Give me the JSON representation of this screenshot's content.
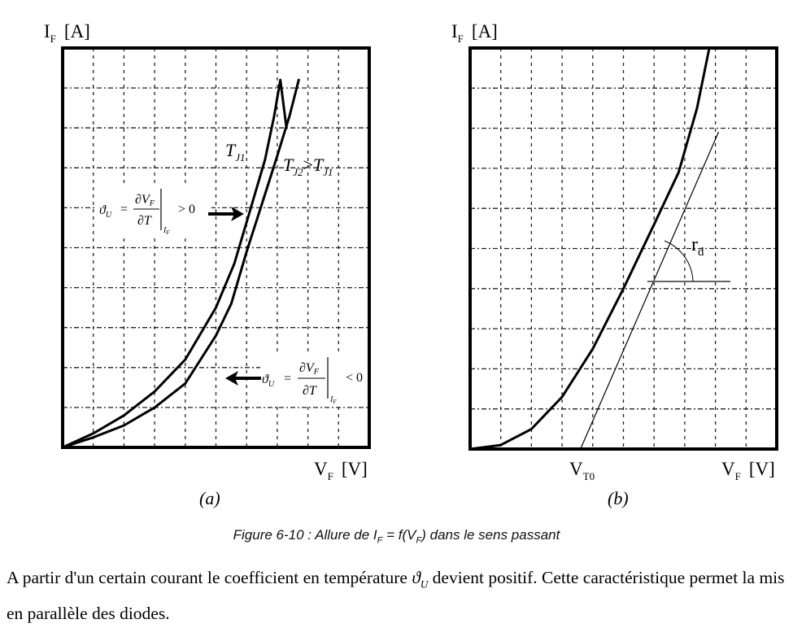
{
  "chart_data": [
    {
      "type": "line",
      "panel_label": "(a)",
      "title": "",
      "ylabel": {
        "main": "I",
        "sub": "F",
        "unit": "[A]"
      },
      "xlabel": {
        "main": "V",
        "sub": "F",
        "unit": "[V]"
      },
      "xlim": [
        0,
        10
      ],
      "ylim": [
        0,
        10
      ],
      "grid": true,
      "series": [
        {
          "name": "TJ1",
          "label_main": "T",
          "label_sub": "J1",
          "x": [
            0,
            1,
            2,
            3,
            4,
            5,
            5.6,
            6.1,
            6.6,
            6.9,
            7.1,
            7.3
          ],
          "y": [
            0,
            0.35,
            0.8,
            1.4,
            2.2,
            3.5,
            4.6,
            5.9,
            7.2,
            8.3,
            9.2,
            8.0
          ]
        },
        {
          "name": "TJ2>TJ1",
          "label_main": "T",
          "label_sub": "J2",
          "label_rel": ">",
          "label_main2": "T",
          "label_sub2": "J1",
          "x": [
            0,
            1,
            2,
            3,
            4,
            5,
            5.5,
            6,
            6.5,
            7,
            7.4,
            7.7
          ],
          "y": [
            0,
            0.25,
            0.55,
            1.0,
            1.6,
            2.8,
            3.6,
            4.9,
            6.1,
            7.3,
            8.3,
            9.2
          ]
        }
      ],
      "annotations": [
        {
          "name": "positive-coefficient",
          "lhs": "ϑ",
          "lhs_sub": "U",
          "eq": "=",
          "num": "∂V",
          "num_sub": "F",
          "den": "∂T",
          "eval_sub_main": "I",
          "eval_sub_sub": "F",
          "rel": "> 0",
          "arrow": "right"
        },
        {
          "name": "negative-coefficient",
          "lhs": "ϑ",
          "lhs_sub": "U",
          "eq": "=",
          "num": "∂V",
          "num_sub": "F",
          "den": "∂T",
          "eval_sub_main": "I",
          "eval_sub_sub": "F",
          "rel": "< 0",
          "arrow": "left"
        }
      ]
    },
    {
      "type": "line",
      "panel_label": "(b)",
      "title": "",
      "ylabel": {
        "main": "I",
        "sub": "F",
        "unit": "[A]"
      },
      "xlabel": {
        "main": "V",
        "sub": "F",
        "unit": "[V]"
      },
      "xlim": [
        0,
        10
      ],
      "ylim": [
        0,
        10
      ],
      "grid": true,
      "series": [
        {
          "name": "IF(VF)",
          "x": [
            0,
            1,
            2,
            3,
            4,
            5,
            6,
            6.8,
            7.4,
            7.8
          ],
          "y": [
            0,
            0.1,
            0.5,
            1.3,
            2.5,
            4.0,
            5.6,
            6.9,
            8.5,
            10
          ]
        },
        {
          "name": "tangent",
          "x": [
            3.6,
            8.1
          ],
          "y": [
            0,
            7.9
          ]
        }
      ],
      "annotations": [
        {
          "name": "threshold-voltage",
          "main": "V",
          "sub": "T0"
        },
        {
          "name": "dynamic-resistance",
          "main": "r",
          "sub": "d"
        }
      ]
    }
  ],
  "figure_caption": {
    "prefix": "Figure 6-10 : Allure de I",
    "sub1": "F",
    "mid": " = f(V",
    "sub2": "F",
    "suffix": ") dans le sens passant"
  },
  "paragraph": {
    "part1": "A partir d'un certain courant le coefficient en température ",
    "symbol": "ϑ",
    "symbol_sub": "U",
    "part2": " devient positif. Cette caractéristique permet la mis en parallèle des diodes."
  },
  "colors": {
    "ink": "#000000",
    "grid": "#222222",
    "helper": "#666666"
  }
}
